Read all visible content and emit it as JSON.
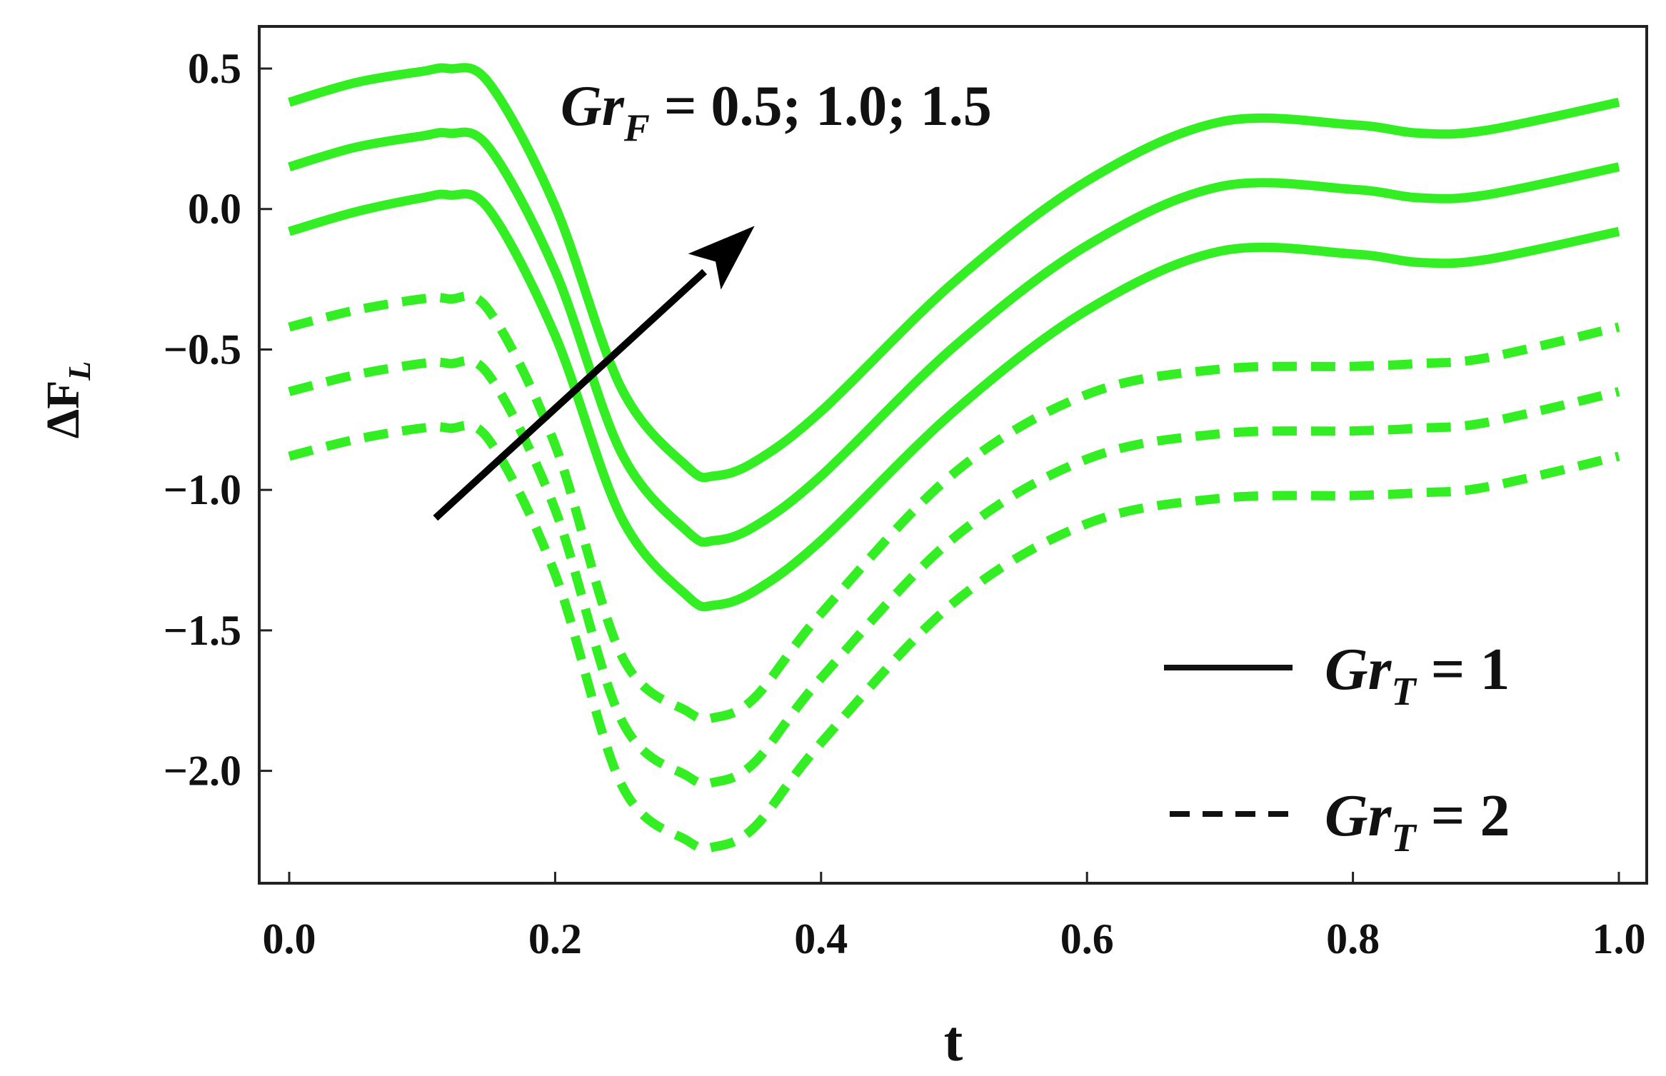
{
  "chart_data": {
    "type": "line",
    "title": "",
    "xlabel": "t",
    "ylabel": {
      "main": "ΔF",
      "sub": "L"
    },
    "xlim": [
      0.0,
      1.0
    ],
    "ylim": [
      -2.4,
      0.65
    ],
    "xticks": [
      0.0,
      0.2,
      0.4,
      0.6,
      0.8,
      1.0
    ],
    "xtick_labels": [
      "0.0",
      "0.2",
      "0.4",
      "0.6",
      "0.8",
      "1.0"
    ],
    "yticks": [
      0.5,
      0.0,
      -0.5,
      -1.0,
      -1.5,
      -2.0
    ],
    "ytick_labels": [
      "0.5",
      "0.0",
      "−0.5",
      "−1.0",
      "−1.5",
      "−2.0"
    ],
    "grid": false,
    "line_color": "#33ee22",
    "arrow_color": "#000000",
    "x": [
      0.0,
      0.05,
      0.1,
      0.12,
      0.15,
      0.2,
      0.25,
      0.3,
      0.32,
      0.35,
      0.4,
      0.5,
      0.6,
      0.7,
      0.8,
      0.85,
      0.9,
      1.0
    ],
    "series": [
      {
        "name": "GrF = 0.5, GrT = 1",
        "style": "solid",
        "values": [
          -0.08,
          -0.01,
          0.04,
          0.05,
          0.0,
          -0.45,
          -1.1,
          -1.38,
          -1.41,
          -1.36,
          -1.18,
          -0.72,
          -0.36,
          -0.15,
          -0.16,
          -0.19,
          -0.18,
          -0.08
        ]
      },
      {
        "name": "GrF = 1.0, GrT = 1",
        "style": "solid",
        "values": [
          0.15,
          0.22,
          0.26,
          0.27,
          0.22,
          -0.22,
          -0.87,
          -1.15,
          -1.18,
          -1.13,
          -0.95,
          -0.49,
          -0.13,
          0.08,
          0.07,
          0.04,
          0.05,
          0.15
        ]
      },
      {
        "name": "GrF = 1.5, GrT = 1",
        "style": "solid",
        "values": [
          0.38,
          0.45,
          0.49,
          0.5,
          0.45,
          0.01,
          -0.64,
          -0.92,
          -0.95,
          -0.9,
          -0.72,
          -0.26,
          0.1,
          0.31,
          0.3,
          0.27,
          0.28,
          0.38
        ]
      },
      {
        "name": "GrF = 0.5, GrT = 2",
        "style": "dashed",
        "values": [
          -0.88,
          -0.82,
          -0.78,
          -0.78,
          -0.82,
          -1.3,
          -2.05,
          -2.25,
          -2.27,
          -2.2,
          -1.9,
          -1.4,
          -1.12,
          -1.03,
          -1.02,
          -1.01,
          -0.99,
          -0.88
        ]
      },
      {
        "name": "GrF = 1.0, GrT = 2",
        "style": "dashed",
        "values": [
          -0.65,
          -0.59,
          -0.55,
          -0.55,
          -0.59,
          -1.07,
          -1.82,
          -2.02,
          -2.04,
          -1.97,
          -1.67,
          -1.17,
          -0.89,
          -0.8,
          -0.79,
          -0.78,
          -0.76,
          -0.65
        ]
      },
      {
        "name": "GrF = 1.5, GrT = 2",
        "style": "dashed",
        "values": [
          -0.42,
          -0.36,
          -0.32,
          -0.32,
          -0.36,
          -0.84,
          -1.59,
          -1.79,
          -1.81,
          -1.74,
          -1.44,
          -0.94,
          -0.66,
          -0.57,
          -0.56,
          -0.55,
          -0.53,
          -0.42
        ]
      }
    ],
    "annotation": {
      "base": "Gr",
      "sub": "F",
      "rest": " = 0.5; 1.0; 1.5",
      "arrow_from": [
        0.11,
        -1.1
      ],
      "arrow_to": [
        0.35,
        -0.06
      ]
    },
    "legend": {
      "position": "bottom-right",
      "entries": [
        {
          "style": "solid",
          "base": "Gr",
          "sub": "T",
          "rest": " = 1"
        },
        {
          "style": "dashed",
          "base": "Gr",
          "sub": "T",
          "rest": " = 2"
        }
      ]
    }
  }
}
